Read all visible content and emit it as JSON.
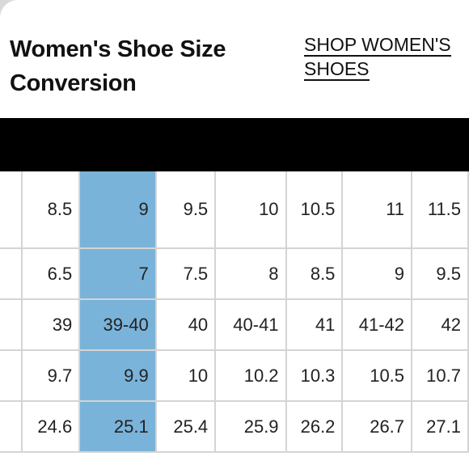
{
  "page": {
    "title": "Women's Shoe Size Conversion",
    "shop_link": "SHOP WOMEN'S SHOES"
  },
  "colors": {
    "highlight": "#7ab3d9",
    "header_bar": "#000000",
    "border": "#d4d4d4"
  },
  "table": {
    "rows": [
      {
        "stub": "",
        "cells": [
          "8.5",
          "9",
          "9.5",
          "10",
          "10.5",
          "11",
          "11.5"
        ]
      },
      {
        "stub": "",
        "cells": [
          "6.5",
          "7",
          "7.5",
          "8",
          "8.5",
          "9",
          "9.5"
        ]
      },
      {
        "stub": "",
        "cells": [
          "39",
          "39-40",
          "40",
          "40-41",
          "41",
          "41-42",
          "42"
        ]
      },
      {
        "stub": "",
        "cells": [
          "9.7",
          "9.9",
          "10",
          "10.2",
          "10.3",
          "10.5",
          "10.7"
        ]
      },
      {
        "stub": "",
        "cells": [
          "24.6",
          "25.1",
          "25.4",
          "25.9",
          "26.2",
          "26.7",
          "27.1"
        ]
      }
    ]
  }
}
